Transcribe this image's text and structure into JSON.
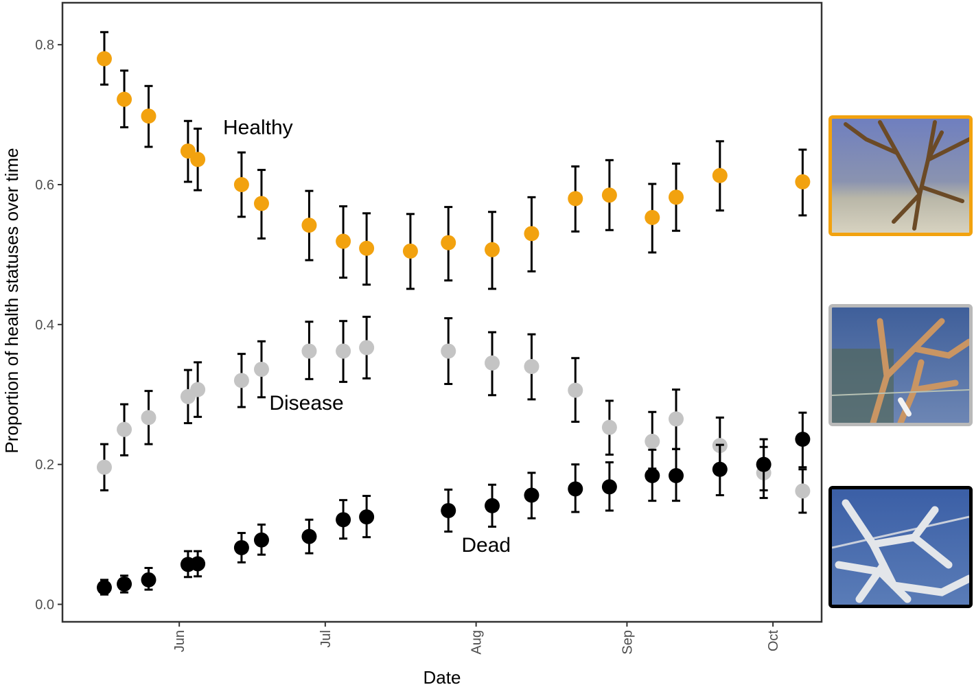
{
  "chart_data": {
    "type": "scatter",
    "title": "",
    "xlabel": "Date",
    "ylabel": "Proportion of health statuses over time",
    "ylim": [
      -0.025,
      0.86
    ],
    "xlim_days": [
      -24,
      132
    ],
    "x_ticks": [
      {
        "label": "Jun",
        "day": 0
      },
      {
        "label": "Jul",
        "day": 30
      },
      {
        "label": "Aug",
        "day": 61
      },
      {
        "label": "Sep",
        "day": 92
      },
      {
        "label": "Oct",
        "day": 122
      }
    ],
    "y_ticks": [
      {
        "label": "0.0",
        "value": 0.0
      },
      {
        "label": "0.2",
        "value": 0.2
      },
      {
        "label": "0.4",
        "value": 0.4
      },
      {
        "label": "0.6",
        "value": 0.6
      },
      {
        "label": "0.8",
        "value": 0.8
      }
    ],
    "x_days": [
      -15.4,
      -11.3,
      -6.3,
      1.8,
      3.8,
      12.8,
      16.9,
      26.7,
      33.7,
      38.5,
      47.5,
      55.3,
      64.3,
      72.4,
      81.4,
      88.4,
      97.2,
      102.1,
      111.1,
      120.1,
      128.1
    ],
    "series": [
      {
        "name": "Healthy",
        "color": "#f2a20f",
        "values": [
          0.78,
          0.722,
          0.698,
          0.648,
          0.636,
          0.6,
          0.573,
          0.542,
          0.519,
          0.509,
          0.505,
          0.517,
          0.507,
          0.53,
          0.58,
          0.585,
          0.553,
          0.582,
          0.613,
          0.604
        ],
        "lower": [
          0.743,
          0.682,
          0.654,
          0.604,
          0.592,
          0.554,
          0.523,
          0.492,
          0.467,
          0.457,
          0.451,
          0.463,
          0.451,
          0.476,
          0.533,
          0.535,
          0.503,
          0.534,
          0.563,
          0.556
        ],
        "upper": [
          0.818,
          0.763,
          0.741,
          0.691,
          0.68,
          0.646,
          0.621,
          0.591,
          0.569,
          0.559,
          0.558,
          0.568,
          0.561,
          0.582,
          0.626,
          0.635,
          0.601,
          0.63,
          0.662,
          0.65
        ],
        "x_index": [
          0,
          1,
          2,
          3,
          4,
          5,
          6,
          7,
          8,
          9,
          10,
          11,
          12,
          13,
          14,
          15,
          16,
          17,
          18,
          20
        ]
      },
      {
        "name": "Disease",
        "color": "#c4c4c4",
        "values": [
          0.196,
          0.25,
          0.267,
          0.297,
          0.307,
          0.32,
          0.336,
          0.362,
          0.362,
          0.367,
          0.362,
          0.345,
          0.34,
          0.306,
          0.253,
          0.233,
          0.265,
          0.227,
          0.188,
          0.162
        ],
        "lower": [
          0.163,
          0.213,
          0.229,
          0.259,
          0.268,
          0.282,
          0.296,
          0.322,
          0.318,
          0.323,
          0.315,
          0.299,
          0.293,
          0.261,
          0.214,
          0.194,
          0.222,
          0.189,
          0.152,
          0.131
        ],
        "upper": [
          0.229,
          0.286,
          0.305,
          0.335,
          0.346,
          0.358,
          0.376,
          0.404,
          0.405,
          0.411,
          0.409,
          0.389,
          0.386,
          0.352,
          0.291,
          0.275,
          0.307,
          0.267,
          0.225,
          0.193
        ],
        "x_index": [
          0,
          1,
          2,
          3,
          4,
          5,
          6,
          7,
          8,
          9,
          11,
          12,
          13,
          14,
          15,
          16,
          17,
          18,
          19,
          20
        ]
      },
      {
        "name": "Dead",
        "color": "#000000",
        "values": [
          0.024,
          0.029,
          0.035,
          0.057,
          0.058,
          0.081,
          0.092,
          0.097,
          0.121,
          0.125,
          0.134,
          0.141,
          0.156,
          0.165,
          0.168,
          0.184,
          0.184,
          0.193,
          0.2,
          0.236
        ],
        "lower": [
          0.014,
          0.017,
          0.021,
          0.039,
          0.04,
          0.06,
          0.071,
          0.073,
          0.094,
          0.096,
          0.104,
          0.111,
          0.123,
          0.132,
          0.134,
          0.148,
          0.148,
          0.156,
          0.163,
          0.196
        ],
        "upper": [
          0.035,
          0.041,
          0.052,
          0.076,
          0.076,
          0.102,
          0.114,
          0.121,
          0.149,
          0.155,
          0.164,
          0.171,
          0.188,
          0.2,
          0.203,
          0.221,
          0.222,
          0.228,
          0.236,
          0.274
        ],
        "x_index": [
          0,
          1,
          2,
          3,
          4,
          5,
          6,
          7,
          8,
          9,
          11,
          12,
          13,
          14,
          15,
          16,
          17,
          18,
          19,
          20
        ]
      }
    ],
    "annotations": [
      {
        "text": "Healthy",
        "day": 9,
        "value": 0.672
      },
      {
        "text": "Disease",
        "day": 18.5,
        "value": 0.278
      },
      {
        "text": "Dead",
        "day": 58,
        "value": 0.075
      }
    ]
  },
  "photo_panels": [
    {
      "name": "healthy-photo",
      "border_color": "#f2a20f"
    },
    {
      "name": "disease-photo",
      "border_color": "#b9b9b9"
    },
    {
      "name": "dead-photo",
      "border_color": "#000000"
    }
  ]
}
